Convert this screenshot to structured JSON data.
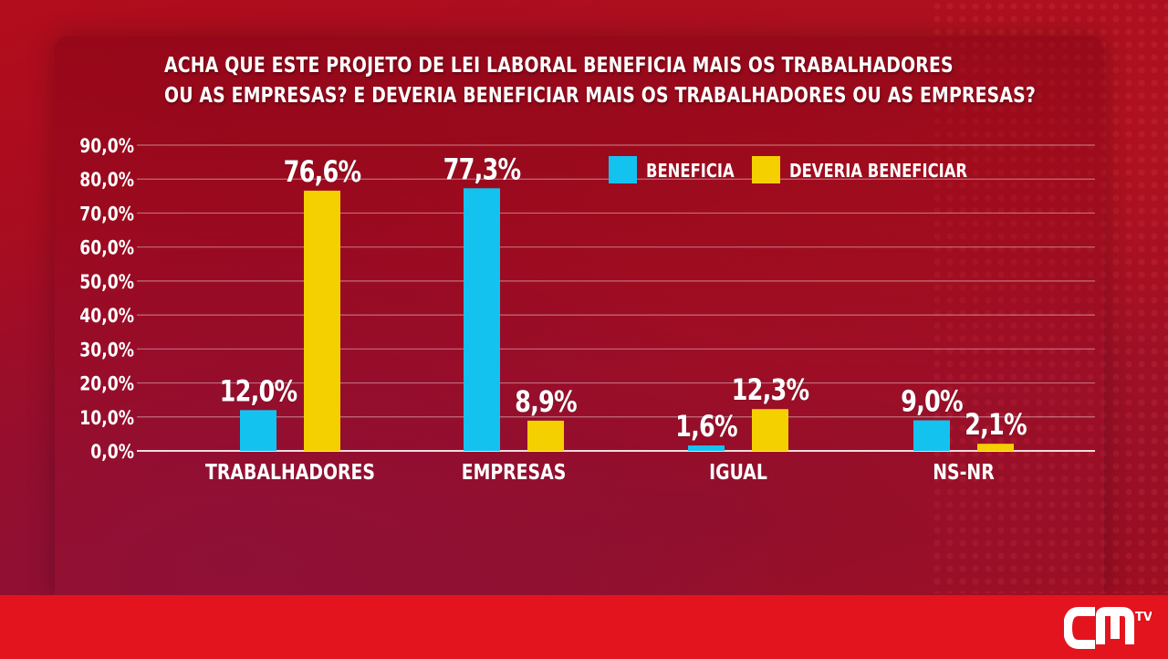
{
  "chart_data": {
    "type": "bar",
    "title_lines": [
      "ACHA QUE ESTE PROJETO DE LEI LABORAL BENEFICIA MAIS OS TRABALHADORES",
      "OU AS EMPRESAS? E DEVERIA BENEFICIAR MAIS OS TRABALHADORES OU AS EMPRESAS?"
    ],
    "categories": [
      "TRABALHADORES",
      "EMPRESAS",
      "IGUAL",
      "NS-NR"
    ],
    "series": [
      {
        "name": "BENEFICIA",
        "color": "#14c2f0",
        "values": [
          12.0,
          77.3,
          1.6,
          9.0
        ],
        "labels": [
          "12,0%",
          "77,3%",
          "1,6%",
          "9,0%"
        ]
      },
      {
        "name": "DEVERIA BENEFICIAR",
        "color": "#f5d000",
        "values": [
          76.6,
          8.9,
          12.3,
          2.1
        ],
        "labels": [
          "76,6%",
          "8,9%",
          "12,3%",
          "2,1%"
        ]
      }
    ],
    "y_ticks": [
      0,
      10,
      20,
      30,
      40,
      50,
      60,
      70,
      80,
      90
    ],
    "y_tick_labels": [
      "0,0%",
      "10,0%",
      "20,0%",
      "30,0%",
      "40,0%",
      "50,0%",
      "60,0%",
      "70,0%",
      "80,0%",
      "90,0%"
    ],
    "ylim": [
      0,
      90
    ],
    "grid": true,
    "legend_position": "top-right",
    "xlabel": "",
    "ylabel": ""
  },
  "branding": {
    "channel_logo_text": "CM",
    "channel_logo_suffix": "TV",
    "footer_color": "#e3141e"
  }
}
